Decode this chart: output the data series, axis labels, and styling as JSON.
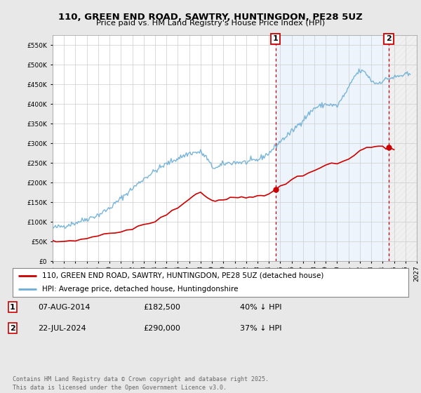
{
  "title": "110, GREEN END ROAD, SAWTRY, HUNTINGDON, PE28 5UZ",
  "subtitle": "Price paid vs. HM Land Registry's House Price Index (HPI)",
  "legend_line1": "110, GREEN END ROAD, SAWTRY, HUNTINGDON, PE28 5UZ (detached house)",
  "legend_line2": "HPI: Average price, detached house, Huntingdonshire",
  "annotation1_date": "07-AUG-2014",
  "annotation1_price": "£182,500",
  "annotation1_hpi": "40% ↓ HPI",
  "annotation2_date": "22-JUL-2024",
  "annotation2_price": "£290,000",
  "annotation2_hpi": "37% ↓ HPI",
  "footer": "Contains HM Land Registry data © Crown copyright and database right 2025.\nThis data is licensed under the Open Government Licence v3.0.",
  "hpi_color": "#6baed6",
  "price_color": "#cc0000",
  "background_color": "#e8e8e8",
  "plot_bg_color": "#ffffff",
  "shade_between_color": "#ddeeff",
  "ylim": [
    0,
    575000
  ],
  "yticks": [
    0,
    50000,
    100000,
    150000,
    200000,
    250000,
    300000,
    350000,
    400000,
    450000,
    500000,
    550000
  ],
  "x_start_year": 1995,
  "x_end_year": 2027,
  "marker1_year": 2014.583,
  "marker1_val": 182500,
  "marker2_year": 2024.542,
  "marker2_val": 290000
}
